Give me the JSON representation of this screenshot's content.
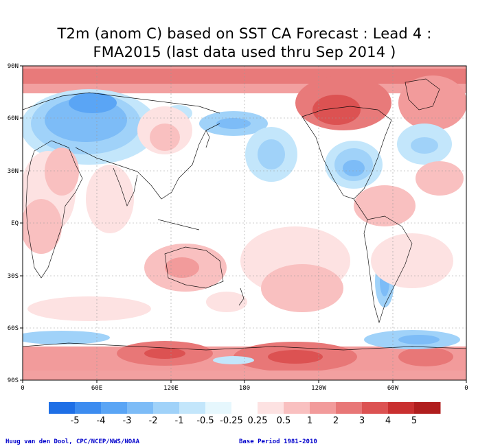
{
  "title": {
    "line1": "T2m (anom C) based on SST CA Forecast : Lead 4 :",
    "line2": "FMA2015 (last data used thru Sep 2014 )"
  },
  "map": {
    "lat_labels": [
      "90N",
      "60N",
      "30N",
      "EQ",
      "30S",
      "60S",
      "90S"
    ],
    "lon_labels": [
      "0",
      "60E",
      "120E",
      "180",
      "120W",
      "60W",
      "0"
    ]
  },
  "colorbar": {
    "labels": [
      "-5",
      "-4",
      "-3",
      "-2",
      "-1",
      "-0.5",
      "-0.25",
      "0.25",
      "0.5",
      "1",
      "2",
      "3",
      "4",
      "5"
    ],
    "colors": [
      "#1e6fe6",
      "#3c8cf0",
      "#5aa5f5",
      "#7dbcf7",
      "#a0d2f9",
      "#c3e6fb",
      "#e6f7fd",
      "#ffffff",
      "#fde2e2",
      "#f9c0c0",
      "#f29b9b",
      "#e87777",
      "#dc5252",
      "#c93030",
      "#b01e1e"
    ]
  },
  "credits": {
    "left": "Huug van den Dool, CPC/NCEP/NWS/NOAA",
    "right": "Base Period 1981-2010"
  }
}
